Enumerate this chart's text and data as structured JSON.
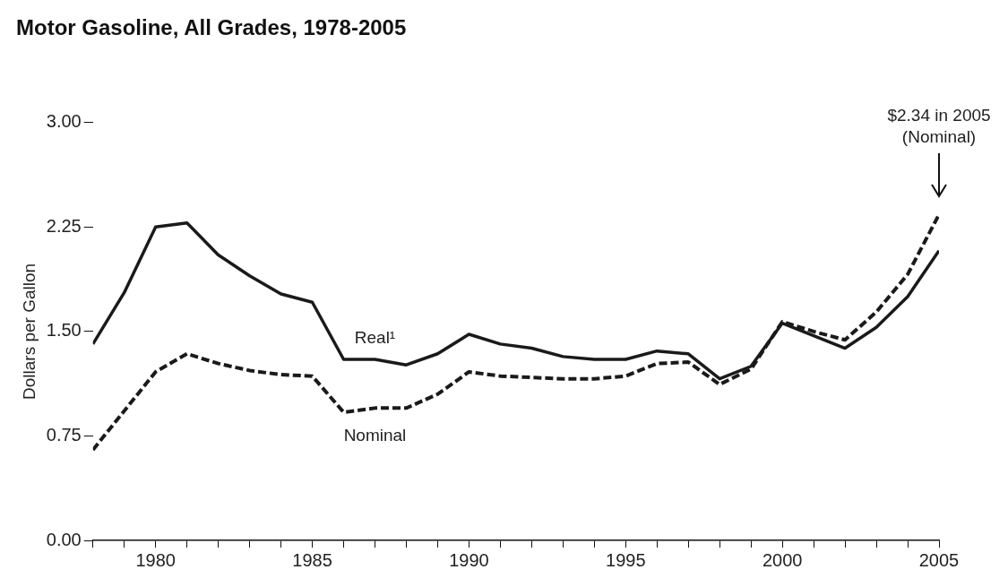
{
  "chart_data": {
    "type": "line",
    "title": "Motor Gasoline, All Grades, 1978-2005",
    "ylabel": "Dollars per Gallon",
    "x": [
      1978,
      1979,
      1980,
      1981,
      1982,
      1983,
      1984,
      1985,
      1986,
      1987,
      1988,
      1989,
      1990,
      1991,
      1992,
      1993,
      1994,
      1995,
      1996,
      1997,
      1998,
      1999,
      2000,
      2001,
      2002,
      2003,
      2004,
      2005
    ],
    "series": [
      {
        "name": "Real¹",
        "color": "#1a1a1a",
        "line_style": "solid",
        "values": [
          1.41,
          1.78,
          2.25,
          2.28,
          2.05,
          1.9,
          1.77,
          1.71,
          1.3,
          1.3,
          1.26,
          1.34,
          1.48,
          1.41,
          1.38,
          1.32,
          1.3,
          1.3,
          1.36,
          1.34,
          1.16,
          1.25,
          1.56,
          1.47,
          1.38,
          1.53,
          1.75,
          2.08
        ]
      },
      {
        "name": "Nominal",
        "color": "#1a1a1a",
        "line_style": "dashed",
        "values": [
          0.65,
          0.93,
          1.21,
          1.34,
          1.27,
          1.22,
          1.19,
          1.18,
          0.92,
          0.95,
          0.95,
          1.05,
          1.21,
          1.18,
          1.17,
          1.16,
          1.16,
          1.18,
          1.27,
          1.28,
          1.12,
          1.23,
          1.57,
          1.5,
          1.44,
          1.64,
          1.91,
          2.34
        ]
      }
    ],
    "xlim": [
      1978,
      2005
    ],
    "xticks": [
      {
        "value": 1978,
        "label": null
      },
      {
        "value": 1979,
        "label": null
      },
      1980,
      {
        "value": 1981,
        "label": null
      },
      {
        "value": 1982,
        "label": null
      },
      {
        "value": 1983,
        "label": null
      },
      {
        "value": 1984,
        "label": null
      },
      1985,
      {
        "value": 1986,
        "label": null
      },
      {
        "value": 1987,
        "label": null
      },
      {
        "value": 1988,
        "label": null
      },
      {
        "value": 1989,
        "label": null
      },
      1990,
      {
        "value": 1991,
        "label": null
      },
      {
        "value": 1992,
        "label": null
      },
      {
        "value": 1993,
        "label": null
      },
      {
        "value": 1994,
        "label": null
      },
      1995,
      {
        "value": 1996,
        "label": null
      },
      {
        "value": 1997,
        "label": null
      },
      {
        "value": 1998,
        "label": null
      },
      {
        "value": 1999,
        "label": null
      },
      2000,
      {
        "value": 2001,
        "label": null
      },
      {
        "value": 2002,
        "label": null
      },
      {
        "value": 2003,
        "label": null
      },
      {
        "value": 2004,
        "label": null
      },
      2005
    ],
    "ylim": [
      0,
      3
    ],
    "yticks": [
      {
        "value": 0,
        "label": "0.00"
      },
      {
        "value": 0.75,
        "label": "0.75"
      },
      {
        "value": 1.5,
        "label": "1.50"
      },
      {
        "value": 2.25,
        "label": "2.25"
      },
      {
        "value": 3,
        "label": "3.00"
      }
    ],
    "grid": false,
    "legend": false,
    "marker": "none",
    "annotations": [
      "$2.34 in 2005\n(Nominal)"
    ]
  }
}
